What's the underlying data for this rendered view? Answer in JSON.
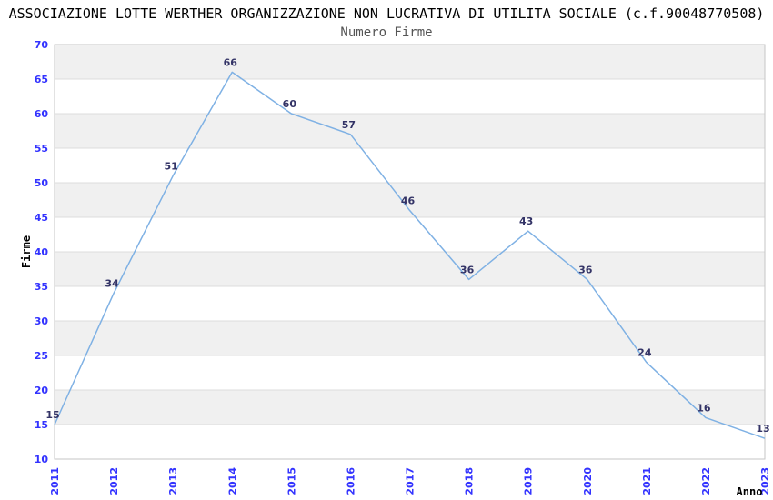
{
  "chart_data": {
    "type": "line",
    "title": "ASSOCIAZIONE LOTTE WERTHER ORGANIZZAZIONE NON LUCRATIVA DI UTILITA SOCIALE (c.f.90048770508)",
    "subtitle": "Numero Firme",
    "xlabel": "Anno",
    "ylabel": "Firme",
    "categories": [
      "2011",
      "2012",
      "2013",
      "2014",
      "2015",
      "2016",
      "2017",
      "2018",
      "2019",
      "2020",
      "2021",
      "2022",
      "2023"
    ],
    "values": [
      15,
      34,
      51,
      66,
      60,
      57,
      46,
      36,
      43,
      36,
      24,
      16,
      13
    ],
    "ylim": [
      10,
      70
    ],
    "ytick_step": 5,
    "grid": true,
    "grid_style": "horizontal-lines-with-alternating-bands",
    "legend_position": "none",
    "colors": {
      "line": "#7FB1E4",
      "tick_label": "#3333FF",
      "data_label": "#333366",
      "band": "#F0F0F0",
      "gridline": "#DCDCDC",
      "border": "#C6C6C6",
      "title": "#000000",
      "subtitle": "#555555",
      "axis_label": "#000000",
      "background": "#FFFFFF"
    }
  }
}
